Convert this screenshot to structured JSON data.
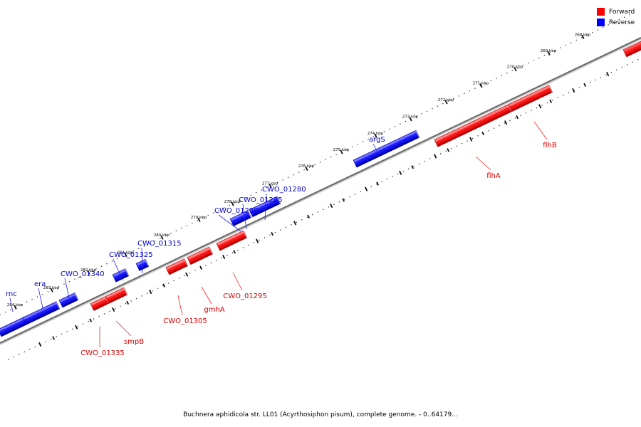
{
  "legend": {
    "forward_label": "Forward",
    "forward_color": "#ff0000",
    "reverse_label": "Reverse",
    "reverse_color": "#0000ff"
  },
  "caption": "Buchnera aphidicola str. LL01 (Acyrthosiphon pisum), complete genome. - 0..64179...",
  "kbp_labels": [
    "268 kbp",
    "269 kbp",
    "270 kbp",
    "271 kbp",
    "272 kbp",
    "273 kbp",
    "274 kbp",
    "275 kbp",
    "276 kbp",
    "277 kbp",
    "278 kbp",
    "279 kbp",
    "280 kbp",
    "281 kbp",
    "282 kbp",
    "283 kbp",
    "284 kbp"
  ],
  "genes": [
    {
      "name": "rnc",
      "strand": "reverse"
    },
    {
      "name": "era",
      "strand": "reverse"
    },
    {
      "name": "CWO_01340",
      "strand": "reverse"
    },
    {
      "name": "CWO_01325",
      "strand": "reverse"
    },
    {
      "name": "CWO_01315",
      "strand": "reverse"
    },
    {
      "name": "CWO_01290",
      "strand": "reverse"
    },
    {
      "name": "CWO_01285",
      "strand": "reverse"
    },
    {
      "name": "CWO_01280",
      "strand": "reverse"
    },
    {
      "name": "argS",
      "strand": "reverse"
    },
    {
      "name": "CWO_01335",
      "strand": "forward"
    },
    {
      "name": "smpB",
      "strand": "forward"
    },
    {
      "name": "CWO_01305",
      "strand": "forward"
    },
    {
      "name": "gmhA",
      "strand": "forward"
    },
    {
      "name": "CWO_01295",
      "strand": "forward"
    },
    {
      "name": "flhA",
      "strand": "forward"
    },
    {
      "name": "flhB",
      "strand": "forward"
    }
  ]
}
